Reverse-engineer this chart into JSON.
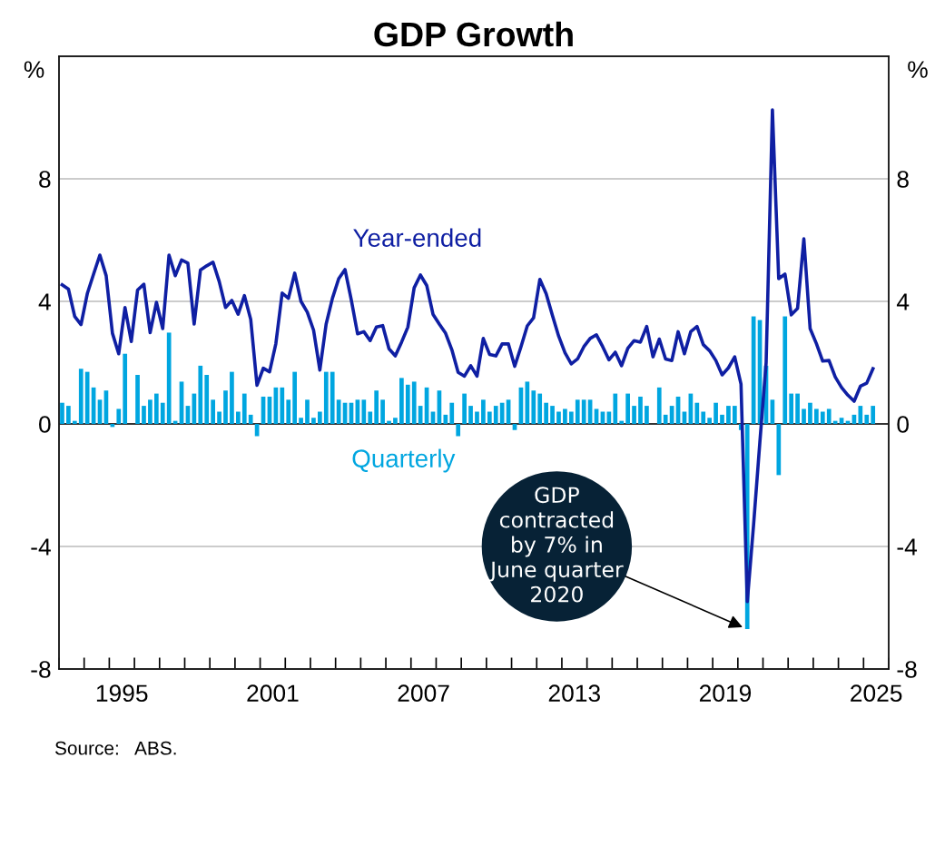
{
  "chart_data": {
    "type": "bar",
    "title": "GDP Growth",
    "ylabel": "%",
    "y2label": "%",
    "x": [
      1993.125,
      1993.375,
      1993.625,
      1993.875,
      1994.125,
      1994.375,
      1994.625,
      1994.875,
      1995.125,
      1995.375,
      1995.625,
      1995.875,
      1996.125,
      1996.375,
      1996.625,
      1996.875,
      1997.125,
      1997.375,
      1997.625,
      1997.875,
      1998.125,
      1998.375,
      1998.625,
      1998.875,
      1999.125,
      1999.375,
      1999.625,
      1999.875,
      2000.125,
      2000.375,
      2000.625,
      2000.875,
      2001.125,
      2001.375,
      2001.625,
      2001.875,
      2002.125,
      2002.375,
      2002.625,
      2002.875,
      2003.125,
      2003.375,
      2003.625,
      2003.875,
      2004.125,
      2004.375,
      2004.625,
      2004.875,
      2005.125,
      2005.375,
      2005.625,
      2005.875,
      2006.125,
      2006.375,
      2006.625,
      2006.875,
      2007.125,
      2007.375,
      2007.625,
      2007.875,
      2008.125,
      2008.375,
      2008.625,
      2008.875,
      2009.125,
      2009.375,
      2009.625,
      2009.875,
      2010.125,
      2010.375,
      2010.625,
      2010.875,
      2011.125,
      2011.375,
      2011.625,
      2011.875,
      2012.125,
      2012.375,
      2012.625,
      2012.875,
      2013.125,
      2013.375,
      2013.625,
      2013.875,
      2014.125,
      2014.375,
      2014.625,
      2014.875,
      2015.125,
      2015.375,
      2015.625,
      2015.875,
      2016.125,
      2016.375,
      2016.625,
      2016.875,
      2017.125,
      2017.375,
      2017.625,
      2017.875,
      2018.125,
      2018.375,
      2018.625,
      2018.875,
      2019.125,
      2019.375,
      2019.625,
      2019.875,
      2020.125,
      2020.375,
      2020.625,
      2020.875,
      2021.125,
      2021.375,
      2021.625,
      2021.875,
      2022.125,
      2022.375,
      2022.625,
      2022.875,
      2023.125,
      2023.375,
      2023.625,
      2023.875,
      2024.125,
      2024.375,
      2024.625,
      2024.875,
      2025.125,
      2025.375
    ],
    "series": [
      {
        "name": "Quarterly",
        "color": "#00a6e0",
        "values": [
          0.69,
          0.59,
          0.1,
          1.8,
          1.7,
          1.19,
          0.79,
          1.09,
          -0.1,
          0.49,
          2.29,
          0.0,
          1.6,
          0.59,
          0.79,
          0.99,
          0.69,
          2.98,
          0.1,
          1.38,
          0.59,
          0.99,
          1.9,
          1.6,
          0.79,
          0.4,
          1.09,
          1.7,
          0.4,
          0.99,
          0.3,
          -0.4,
          0.89,
          0.89,
          1.19,
          1.19,
          0.79,
          1.7,
          0.2,
          0.79,
          0.2,
          0.4,
          1.7,
          1.7,
          0.79,
          0.69,
          0.69,
          0.79,
          0.79,
          0.4,
          1.09,
          0.79,
          0.1,
          0.2,
          1.5,
          1.28,
          1.38,
          0.59,
          1.19,
          0.4,
          1.09,
          0.3,
          0.69,
          -0.4,
          0.99,
          0.59,
          0.4,
          0.79,
          0.4,
          0.59,
          0.69,
          0.79,
          -0.2,
          1.19,
          1.38,
          1.09,
          0.99,
          0.69,
          0.59,
          0.4,
          0.49,
          0.4,
          0.79,
          0.79,
          0.79,
          0.49,
          0.4,
          0.4,
          0.99,
          0.1,
          0.99,
          0.59,
          0.89,
          0.59,
          0.0,
          1.19,
          0.3,
          0.59,
          0.89,
          0.4,
          0.99,
          0.69,
          0.4,
          0.2,
          0.69,
          0.3,
          0.59,
          0.59,
          -0.2,
          -6.7,
          3.51,
          3.39,
          1.9,
          0.79,
          -1.67,
          3.51,
          0.99,
          0.99,
          0.49,
          0.69,
          0.49,
          0.4,
          0.49,
          0.1,
          0.2,
          0.1,
          0.3,
          0.59,
          0.3,
          0.59
        ]
      },
      {
        "name": "Year-ended",
        "type": "line",
        "color": "#0f1fa3",
        "values": [
          4.54,
          4.4,
          3.51,
          3.24,
          4.25,
          4.89,
          5.51,
          4.84,
          2.96,
          2.29,
          3.8,
          2.69,
          4.37,
          4.56,
          2.98,
          3.97,
          3.11,
          5.51,
          4.84,
          5.35,
          5.25,
          3.26,
          5.02,
          5.16,
          5.28,
          4.64,
          3.8,
          4.03,
          3.58,
          4.19,
          3.41,
          1.26,
          1.82,
          1.7,
          2.62,
          4.27,
          4.1,
          4.92,
          4.0,
          3.65,
          3.06,
          1.76,
          3.26,
          4.1,
          4.74,
          5.04,
          4.05,
          2.94,
          3.01,
          2.72,
          3.16,
          3.21,
          2.45,
          2.22,
          2.67,
          3.16,
          4.44,
          4.86,
          4.52,
          3.58,
          3.26,
          2.96,
          2.42,
          1.68,
          1.56,
          1.9,
          1.56,
          2.79,
          2.27,
          2.22,
          2.61,
          2.61,
          1.88,
          2.52,
          3.2,
          3.46,
          4.72,
          4.25,
          3.54,
          2.86,
          2.32,
          1.96,
          2.12,
          2.52,
          2.79,
          2.91,
          2.52,
          2.09,
          2.34,
          1.9,
          2.47,
          2.72,
          2.67,
          3.18,
          2.19,
          2.77,
          2.12,
          2.07,
          3.01,
          2.29,
          3.01,
          3.18,
          2.59,
          2.39,
          2.07,
          1.6,
          1.83,
          2.19,
          1.3,
          -5.8,
          -3.3,
          -0.6,
          2.0,
          10.25,
          4.74,
          4.89,
          3.56,
          3.77,
          6.04,
          3.11,
          2.62,
          2.05,
          2.07,
          1.53,
          1.19,
          0.94,
          0.74,
          1.23,
          1.33,
          1.8
        ]
      }
    ],
    "xlim": [
      1993,
      2026
    ],
    "xticks": [
      {
        "value": 1993,
        "label": null
      },
      {
        "value": 1994,
        "label": null
      },
      {
        "value": 1995,
        "label": null
      },
      {
        "value": 1996,
        "label": null
      },
      {
        "value": 1997,
        "label": null
      },
      {
        "value": 1998,
        "label": null
      },
      {
        "value": 1999,
        "label": null
      },
      {
        "value": 2000,
        "label": null
      },
      {
        "value": 2001,
        "label": null
      },
      {
        "value": 2002,
        "label": null
      },
      {
        "value": 2003,
        "label": null
      },
      {
        "value": 2004,
        "label": null
      },
      {
        "value": 2005,
        "label": null
      },
      {
        "value": 2006,
        "label": null
      },
      {
        "value": 2007,
        "label": null
      },
      {
        "value": 2008,
        "label": null
      },
      {
        "value": 2009,
        "label": null
      },
      {
        "value": 2010,
        "label": null
      },
      {
        "value": 2011,
        "label": null
      },
      {
        "value": 2012,
        "label": null
      },
      {
        "value": 2013,
        "label": null
      },
      {
        "value": 2014,
        "label": null
      },
      {
        "value": 2015,
        "label": null
      },
      {
        "value": 2016,
        "label": null
      },
      {
        "value": 2017,
        "label": null
      },
      {
        "value": 2018,
        "label": null
      },
      {
        "value": 2019,
        "label": null
      },
      {
        "value": 2020,
        "label": null
      },
      {
        "value": 2021,
        "label": null
      },
      {
        "value": 2022,
        "label": null
      },
      {
        "value": 2023,
        "label": null
      },
      {
        "value": 2024,
        "label": null
      },
      {
        "value": 2025,
        "label": null
      },
      {
        "value": 2026,
        "label": null
      },
      {
        "value": 1995.5,
        "label": "1995"
      },
      {
        "value": 2001.5,
        "label": "2001"
      },
      {
        "value": 2007.5,
        "label": "2007"
      },
      {
        "value": 2013.5,
        "label": "2013"
      },
      {
        "value": 2019.5,
        "label": "2019"
      },
      {
        "value": 2025.5,
        "label": "2025"
      }
    ],
    "ylim": [
      -8,
      12
    ],
    "yticks": [
      -8,
      -4,
      0,
      4,
      8
    ],
    "y2lim": [
      -8,
      12
    ],
    "y2ticks": [
      -8,
      -4,
      0,
      4,
      8
    ],
    "grid": "y",
    "ref_lines": [
      {
        "axis": "y",
        "value": 0,
        "color": "#000000"
      }
    ],
    "legend": false,
    "annotations": [
      {
        "text": "GDP\ncontracted\nby 7% in\nJune quarter\n2020",
        "x": 2020.375,
        "y": -6.7
      },
      "Source:   ABS."
    ]
  }
}
